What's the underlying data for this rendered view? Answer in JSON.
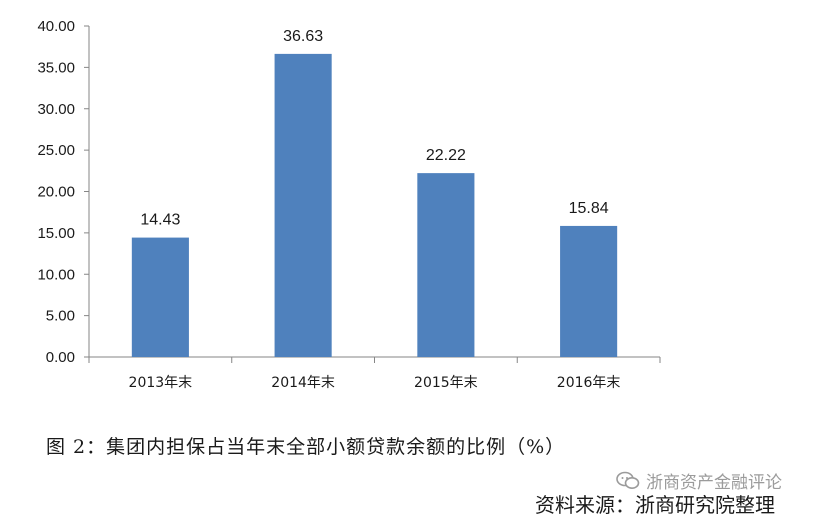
{
  "chart_data": {
    "type": "bar",
    "categories": [
      "2013年末",
      "2014年末",
      "2015年末",
      "2016年末"
    ],
    "values": [
      14.43,
      36.63,
      22.22,
      15.84
    ],
    "value_labels": [
      "14.43",
      "36.63",
      "22.22",
      "15.84"
    ],
    "yticks": [
      "0.00",
      "5.00",
      "10.00",
      "15.00",
      "20.00",
      "25.00",
      "30.00",
      "35.00",
      "40.00"
    ],
    "ylim": [
      0,
      40
    ],
    "grid": false,
    "bar_color": "#4F81BD",
    "axis_color": "#868686"
  },
  "caption": "图 2：集团内担保占当年末全部小额贷款余额的比例（%）",
  "watermark": "浙商资产金融评论",
  "source": "资料来源：浙商研究院整理"
}
